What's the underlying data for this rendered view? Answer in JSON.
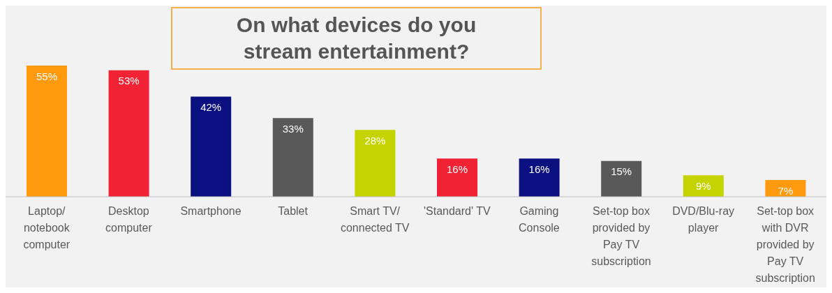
{
  "chart_data": {
    "type": "bar",
    "title": "On what devices do you stream entertainment?",
    "categories": [
      "Laptop/notebook computer",
      "Desktop computer",
      "Smartphone",
      "Tablet",
      "Smart TV/connected TV",
      "'Standard' TV",
      "Gaming Console",
      "Set-top box provided by Pay TV subscription",
      "DVD/Blu-ray player",
      "Set-top box with DVR provided by Pay TV subscription"
    ],
    "values": [
      55,
      53,
      42,
      33,
      28,
      16,
      16,
      15,
      9,
      7
    ],
    "value_labels": [
      "55%",
      "53%",
      "42%",
      "33%",
      "28%",
      "16%",
      "16%",
      "15%",
      "9%",
      "7%"
    ],
    "colors": [
      "#ff9a0e",
      "#f02233",
      "#0a1080",
      "#595959",
      "#c5d400",
      "#f02233",
      "#0a1080",
      "#595959",
      "#c5d400",
      "#ff9a0e"
    ],
    "grid": false,
    "legend": false
  }
}
